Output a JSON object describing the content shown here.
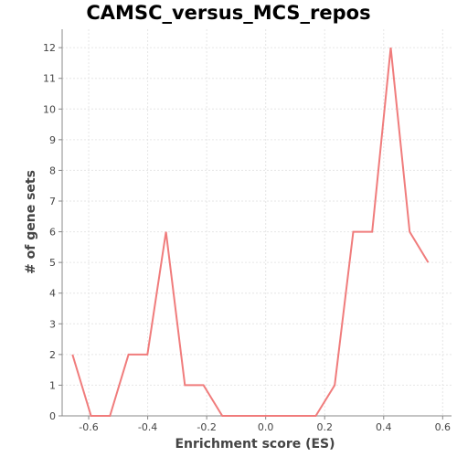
{
  "chart_data": {
    "type": "line",
    "title": "CAMSC_versus_MCS_repos",
    "xlabel": "Enrichment score (ES)",
    "ylabel": "# of gene sets",
    "xlim": [
      -0.69,
      0.63
    ],
    "ylim": [
      0,
      12.6
    ],
    "xticks": [
      -0.6,
      -0.4,
      -0.2,
      0.0,
      0.2,
      0.4,
      0.6
    ],
    "xtick_labels": [
      "-0.6",
      "-0.4",
      "-0.2",
      "0.0",
      "0.2",
      "0.4",
      "0.6"
    ],
    "yticks": [
      0,
      1,
      2,
      3,
      4,
      5,
      6,
      7,
      8,
      9,
      10,
      11,
      12
    ],
    "ytick_labels": [
      "0",
      "1",
      "2",
      "3",
      "4",
      "5",
      "6",
      "7",
      "8",
      "9",
      "10",
      "11",
      "12"
    ],
    "grid": true,
    "series": [
      {
        "color": "#f07c7c",
        "x": [
          -0.655,
          -0.592,
          -0.528,
          -0.465,
          -0.401,
          -0.338,
          -0.274,
          -0.211,
          -0.147,
          -0.084,
          -0.02,
          0.043,
          0.107,
          0.17,
          0.234,
          0.297,
          0.361,
          0.424,
          0.488,
          0.551
        ],
        "y": [
          2,
          0,
          0,
          2,
          2,
          6,
          1,
          1,
          0,
          0,
          0,
          0,
          0,
          0,
          1,
          6,
          6,
          12,
          6,
          5
        ]
      }
    ]
  }
}
